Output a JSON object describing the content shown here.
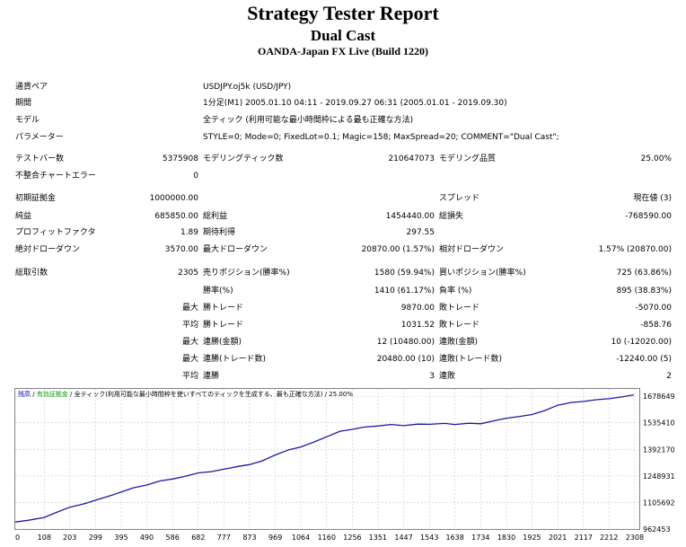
{
  "header": {
    "title": "Strategy Tester Report",
    "ea_name": "Dual Cast",
    "server": "OANDA-Japan FX Live (Build 1220)"
  },
  "summary": {
    "symbol_label": "通貨ペア",
    "symbol": "USDJPY.oj5k (USD/JPY)",
    "period_label": "期間",
    "period": "1分足(M1) 2005.01.10 04:11 - 2019.09.27 06:31 (2005.01.01 - 2019.09.30)",
    "model_label": "モデル",
    "model": "全ティック (利用可能な最小時間枠による最も正確な方法)",
    "params_label": "パラメーター",
    "params": "STYLE=0; Mode=0; FixedLot=0.1; Magic=158; MaxSpread=20; COMMENT=\"Dual Cast\";",
    "bars_label": "テストバー数",
    "bars": "5375908",
    "ticks_label": "モデリングティック数",
    "ticks": "210647073",
    "quality_label": "モデリング品質",
    "quality": "25.00%",
    "mismatch_label": "不整合チャートエラー",
    "mismatch": "0"
  },
  "results": {
    "deposit_label": "初期証拠金",
    "deposit": "1000000.00",
    "spread_label": "スプレッド",
    "spread": "現在値 (3)",
    "net_label": "純益",
    "net": "685850.00",
    "gross_profit_label": "総利益",
    "gross_profit": "1454440.00",
    "gross_loss_label": "総損失",
    "gross_loss": "-768590.00",
    "pf_label": "プロフィットファクタ",
    "pf": "1.89",
    "expected_label": "期待利得",
    "expected": "297.55",
    "abs_dd_label": "絶対ドローダウン",
    "abs_dd": "3570.00",
    "max_dd_label": "最大ドローダウン",
    "max_dd": "20870.00 (1.57%)",
    "rel_dd_label": "相対ドローダウン",
    "rel_dd": "1.57% (20870.00)"
  },
  "trades": {
    "total_label": "総取引数",
    "total": "2305",
    "short_label": "売りポジション(勝率%)",
    "short": "1580 (59.94%)",
    "long_label": "買いポジション(勝率%)",
    "long": "725 (63.86%)",
    "win_label": "勝率(%)",
    "win": "1410 (61.17%)",
    "loss_label": "負率 (%)",
    "loss": "895 (38.83%)",
    "largest_label": "最大",
    "largest_win_label": "勝トレード",
    "largest_win": "9870.00",
    "largest_loss_label": "敗トレード",
    "largest_loss": "-5070.00",
    "average_label": "平均",
    "avg_win_label": "勝トレード",
    "avg_win": "1031.52",
    "avg_loss_label": "敗トレード",
    "avg_loss": "-858.76",
    "max_label": "最大",
    "max_consec_wins_label": "連勝(金額)",
    "max_consec_wins": "12 (10480.00)",
    "max_consec_losses_label": "連敗(金額)",
    "max_consec_losses": "10 (-12020.00)",
    "max2_label": "最大",
    "max_consec_profit_label": "連勝(トレード数)",
    "max_consec_profit": "20480.00 (10)",
    "max_consec_loss_label": "連敗(トレード数)",
    "max_consec_loss": "-12240.00 (5)",
    "avg2_label": "平均",
    "avg_consec_wins_label": "連勝",
    "avg_consec_wins": "3",
    "avg_consec_losses_label": "連敗",
    "avg_consec_losses": "2"
  },
  "chart_data": {
    "type": "line",
    "legend": [
      "残高",
      "有効証拠金",
      "全ティック(利用可能な最小時間枠を使いすべてのティックを生成する、最も正確な方法)",
      "25.00%"
    ],
    "legend_colors": [
      "#0000c8",
      "#00a000",
      "#000000",
      "#000000"
    ],
    "xticks": [
      0,
      108,
      203,
      299,
      395,
      490,
      586,
      682,
      777,
      873,
      969,
      1064,
      1160,
      1256,
      1351,
      1447,
      1543,
      1638,
      1734,
      1830,
      1925,
      2021,
      2117,
      2212,
      2308
    ],
    "yticks": [
      962453,
      1105692,
      1248931,
      1392170,
      1535410,
      1678649
    ],
    "xlim": [
      0,
      2325
    ],
    "ylim": [
      962453,
      1718000
    ],
    "grid": true,
    "series": [
      {
        "color": "#1a1aa0",
        "x": [
          0,
          50,
          108,
          150,
          203,
          260,
          299,
          350,
          395,
          440,
          490,
          540,
          586,
          630,
          682,
          730,
          777,
          830,
          873,
          920,
          969,
          1020,
          1064,
          1110,
          1160,
          1210,
          1256,
          1300,
          1351,
          1400,
          1447,
          1500,
          1543,
          1600,
          1638,
          1690,
          1734,
          1780,
          1830,
          1880,
          1925,
          1970,
          2021,
          2070,
          2117,
          2165,
          2212,
          2260,
          2305
        ],
        "y": [
          1000000,
          1010000,
          1025000,
          1050000,
          1080000,
          1100000,
          1118000,
          1140000,
          1162000,
          1185000,
          1200000,
          1222000,
          1232000,
          1246000,
          1265000,
          1272000,
          1285000,
          1300000,
          1310000,
          1330000,
          1362000,
          1390000,
          1405000,
          1430000,
          1460000,
          1490000,
          1500000,
          1512000,
          1518000,
          1526000,
          1520000,
          1528000,
          1527000,
          1532000,
          1526000,
          1533000,
          1530000,
          1545000,
          1560000,
          1570000,
          1580000,
          1600000,
          1630000,
          1645000,
          1650000,
          1660000,
          1665000,
          1675000,
          1685850
        ]
      }
    ]
  }
}
